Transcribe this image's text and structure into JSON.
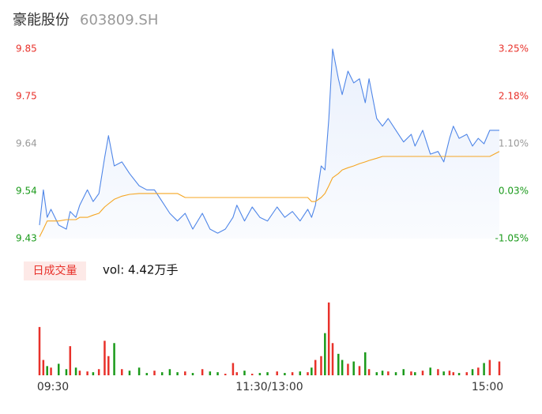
{
  "header": {
    "name": "豪能股份",
    "code": "603809.SH"
  },
  "chart_data": [
    {
      "type": "line",
      "x": [
        0,
        2,
        4,
        6,
        10,
        14,
        16,
        19,
        21,
        25,
        28,
        31,
        34,
        36,
        39,
        43,
        47,
        52,
        56,
        60,
        64,
        68,
        72,
        76,
        80,
        85,
        89,
        93,
        97,
        101,
        103,
        107,
        111,
        115,
        119,
        124,
        128,
        132,
        136,
        140,
        142,
        144,
        147,
        149,
        151,
        153,
        156,
        158,
        161,
        164,
        167,
        170,
        172,
        176,
        179,
        182,
        186,
        190,
        194,
        196,
        200,
        204,
        208,
        211,
        214,
        216,
        219,
        223,
        226,
        229,
        232,
        235,
        240
      ],
      "xlim": [
        0,
        240
      ],
      "series": [
        {
          "color": "#4f86e8",
          "values": [
            9.46,
            9.538,
            9.477,
            9.495,
            9.46,
            9.451,
            9.49,
            9.477,
            9.504,
            9.538,
            9.512,
            9.53,
            9.609,
            9.658,
            9.591,
            9.6,
            9.574,
            9.547,
            9.538,
            9.538,
            9.512,
            9.486,
            9.469,
            9.486,
            9.451,
            9.486,
            9.451,
            9.442,
            9.451,
            9.477,
            9.504,
            9.469,
            9.5,
            9.477,
            9.469,
            9.5,
            9.477,
            9.49,
            9.469,
            9.495,
            9.477,
            9.504,
            9.591,
            9.582,
            9.696,
            9.85,
            9.784,
            9.749,
            9.801,
            9.775,
            9.784,
            9.731,
            9.784,
            9.696,
            9.679,
            9.696,
            9.67,
            9.644,
            9.661,
            9.635,
            9.67,
            9.617,
            9.623,
            9.6,
            9.652,
            9.679,
            9.652,
            9.661,
            9.635,
            9.652,
            9.64,
            9.67,
            9.67
          ]
        },
        {
          "color": "#f5a623",
          "values": [
            9.434,
            9.451,
            9.469,
            9.469,
            9.469,
            9.472,
            9.472,
            9.472,
            9.477,
            9.477,
            9.482,
            9.486,
            9.5,
            9.507,
            9.517,
            9.524,
            9.528,
            9.53,
            9.53,
            9.53,
            9.53,
            9.53,
            9.53,
            9.521,
            9.521,
            9.521,
            9.521,
            9.521,
            9.521,
            9.521,
            9.521,
            9.521,
            9.521,
            9.521,
            9.521,
            9.521,
            9.521,
            9.521,
            9.521,
            9.521,
            9.512,
            9.512,
            9.521,
            9.53,
            9.547,
            9.565,
            9.574,
            9.582,
            9.587,
            9.591,
            9.596,
            9.6,
            9.603,
            9.608,
            9.612,
            9.612,
            9.612,
            9.612,
            9.612,
            9.612,
            9.612,
            9.612,
            9.612,
            9.612,
            9.612,
            9.612,
            9.612,
            9.612,
            9.612,
            9.612,
            9.612,
            9.612,
            9.623
          ]
        }
      ],
      "ylim": [
        9.43,
        9.85
      ],
      "yticks": [
        9.43,
        {
          "value": 9.535,
          "label": "9.54"
        },
        9.64,
        {
          "value": 9.745,
          "label": "9.75"
        },
        9.85
      ],
      "y2lim": [
        -1.05,
        3.25
      ],
      "y2ticks": [
        {
          "value": -1.05,
          "label": "-1.05%"
        },
        {
          "value": 0.025,
          "label": "0.03%"
        },
        {
          "value": 1.1,
          "label": "1.10%"
        },
        {
          "value": 2.175,
          "label": "2.18%"
        },
        {
          "value": 3.25,
          "label": "3.25%"
        }
      ],
      "up_color": "#e8312a",
      "down_color": "#1a9a1a",
      "flat_color": "#999999"
    },
    {
      "type": "bar",
      "title": "日成交量",
      "subtitle": "vol: 4.42万手",
      "x": [
        0,
        2,
        4,
        6,
        10,
        14,
        16,
        19,
        21,
        25,
        28,
        31,
        34,
        36,
        39,
        43,
        47,
        52,
        56,
        60,
        64,
        68,
        72,
        76,
        80,
        85,
        89,
        93,
        97,
        101,
        103,
        107,
        111,
        115,
        119,
        124,
        128,
        132,
        136,
        140,
        142,
        144,
        147,
        149,
        151,
        153,
        156,
        158,
        161,
        164,
        167,
        170,
        172,
        176,
        179,
        182,
        186,
        190,
        194,
        196,
        200,
        204,
        208,
        211,
        214,
        216,
        219,
        223,
        226,
        229,
        232,
        235,
        240
      ],
      "xlim": [
        0,
        240
      ],
      "xticks": [
        {
          "value": 0,
          "label": "09:30"
        },
        {
          "value": 120,
          "label": "11:30/13:00"
        },
        {
          "value": 240,
          "label": "15:00"
        }
      ],
      "values": [
        1449,
        460,
        276,
        230,
        345,
        184,
        874,
        230,
        138,
        115,
        92,
        184,
        1035,
        575,
        966,
        184,
        138,
        230,
        69,
        138,
        92,
        184,
        92,
        115,
        69,
        184,
        115,
        92,
        46,
        368,
        92,
        138,
        46,
        69,
        92,
        115,
        69,
        92,
        115,
        92,
        230,
        460,
        575,
        1265,
        2185,
        966,
        644,
        460,
        345,
        414,
        276,
        690,
        184,
        92,
        138,
        115,
        92,
        184,
        115,
        92,
        138,
        230,
        184,
        115,
        138,
        92,
        69,
        92,
        184,
        230,
        368,
        460,
        414
      ],
      "ylim": [
        0,
        2300
      ],
      "up_color": "#e8312a",
      "down_color": "#1a9a1a"
    }
  ]
}
